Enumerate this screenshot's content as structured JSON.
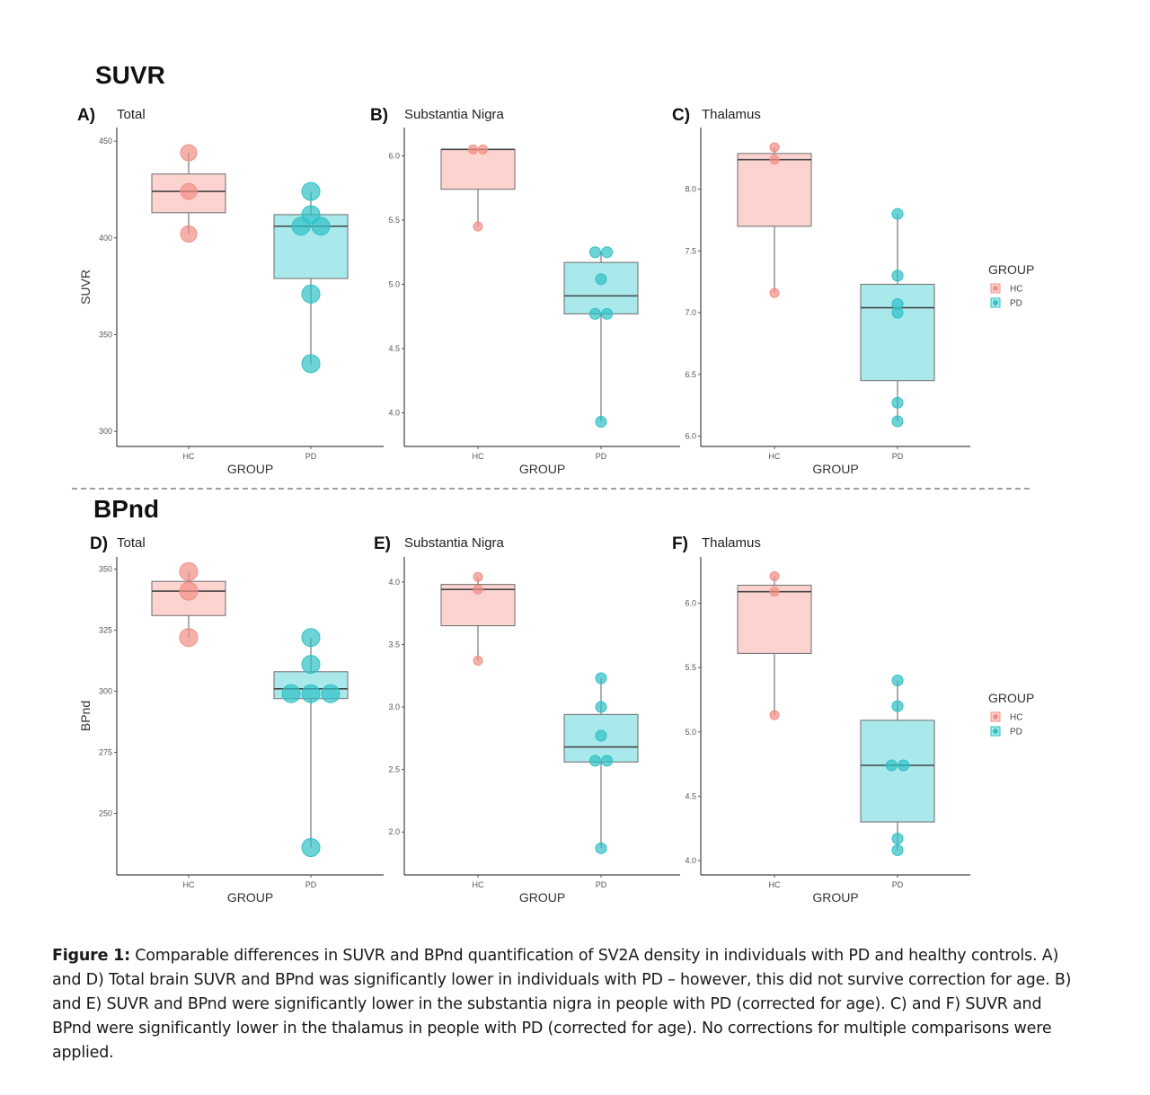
{
  "sections": [
    {
      "title": "SUVR"
    },
    {
      "title": "BPnd"
    }
  ],
  "legend": {
    "title": "GROUP",
    "items": [
      {
        "label": "HC",
        "color": "#f28e86",
        "fill": "#fdd3d0"
      },
      {
        "label": "PD",
        "color": "#2fc1c6",
        "fill": "#a9e9eb"
      }
    ]
  },
  "caption": {
    "label": "Figure 1:",
    "text": " Comparable differences in SUVR and BPnd quantification of SV2A density in individuals with PD and healthy controls. A) and D) Total brain SUVR and BPnd was significantly lower in individuals with PD – however, this did not survive correction for age. B) and E) SUVR and BPnd were significantly lower in the substantia nigra in people with PD (corrected for age). C) and F) SUVR and BPnd were significantly lower in the thalamus in people with PD (corrected for age). No corrections for multiple comparisons were applied."
  },
  "chart_data": [
    {
      "type": "box",
      "panel": "A)",
      "region": "Total",
      "xlabel": "GROUP",
      "ylabel": "SUVR",
      "categories": [
        "HC",
        "PD"
      ],
      "ylim": [
        295,
        457
      ],
      "yticks": [
        300,
        350,
        400,
        450
      ],
      "tick_decimals": 0,
      "boxes": [
        {
          "group": "HC",
          "q1": 413,
          "median": 424,
          "q3": 433,
          "whisker_low": 402,
          "whisker_high": 444
        },
        {
          "group": "PD",
          "q1": 379,
          "median": 406,
          "q3": 412,
          "whisker_low": 335,
          "whisker_high": 424
        }
      ],
      "points": [
        {
          "group": "HC",
          "values": [
            444,
            424,
            402
          ]
        },
        {
          "group": "PD",
          "values": [
            424,
            412,
            406,
            406,
            371,
            335
          ]
        }
      ]
    },
    {
      "type": "box",
      "panel": "B)",
      "region": "Substantia Nigra",
      "xlabel": "GROUP",
      "categories": [
        "HC",
        "PD"
      ],
      "ylim": [
        3.78,
        6.22
      ],
      "yticks": [
        4.0,
        4.5,
        5.0,
        5.5,
        6.0
      ],
      "tick_decimals": 1,
      "boxes": [
        {
          "group": "HC",
          "q1": 5.74,
          "median": 6.05,
          "q3": 6.05,
          "whisker_low": 5.45,
          "whisker_high": 6.05
        },
        {
          "group": "PD",
          "q1": 4.77,
          "median": 4.91,
          "q3": 5.17,
          "whisker_low": 3.93,
          "whisker_high": 5.25
        }
      ],
      "points": [
        {
          "group": "HC",
          "values": [
            6.05,
            6.05,
            5.45
          ]
        },
        {
          "group": "PD",
          "values": [
            5.25,
            5.25,
            5.04,
            4.77,
            4.77,
            3.93
          ]
        }
      ]
    },
    {
      "type": "box",
      "panel": "C)",
      "region": "Thalamus",
      "xlabel": "GROUP",
      "categories": [
        "HC",
        "PD"
      ],
      "ylim": [
        5.96,
        8.5
      ],
      "yticks": [
        6.0,
        6.5,
        7.0,
        7.5,
        8.0
      ],
      "tick_decimals": 1,
      "boxes": [
        {
          "group": "HC",
          "q1": 7.7,
          "median": 8.24,
          "q3": 8.29,
          "whisker_low": 7.16,
          "whisker_high": 8.34
        },
        {
          "group": "PD",
          "q1": 6.45,
          "median": 7.04,
          "q3": 7.23,
          "whisker_low": 6.12,
          "whisker_high": 7.8
        }
      ],
      "points": [
        {
          "group": "HC",
          "values": [
            8.34,
            8.24,
            7.16
          ]
        },
        {
          "group": "PD",
          "values": [
            7.8,
            7.3,
            7.07,
            7.0,
            6.27,
            6.12
          ]
        }
      ]
    },
    {
      "type": "box",
      "panel": "D)",
      "region": "Total",
      "xlabel": "GROUP",
      "ylabel": "BPnd",
      "categories": [
        "HC",
        "PD"
      ],
      "ylim": [
        227,
        355
      ],
      "yticks": [
        250,
        275,
        300,
        325,
        350
      ],
      "tick_decimals": 0,
      "boxes": [
        {
          "group": "HC",
          "q1": 331,
          "median": 341,
          "q3": 345,
          "whisker_low": 322,
          "whisker_high": 349
        },
        {
          "group": "PD",
          "q1": 297,
          "median": 301,
          "q3": 308,
          "whisker_low": 236,
          "whisker_high": 322
        }
      ],
      "points": [
        {
          "group": "HC",
          "values": [
            349,
            341,
            322
          ]
        },
        {
          "group": "PD",
          "values": [
            322,
            311,
            299,
            299,
            299,
            236
          ]
        }
      ]
    },
    {
      "type": "box",
      "panel": "E)",
      "region": "Substantia Nigra",
      "xlabel": "GROUP",
      "categories": [
        "HC",
        "PD"
      ],
      "ylim": [
        1.7,
        4.2
      ],
      "yticks": [
        2.0,
        2.5,
        3.0,
        3.5,
        4.0
      ],
      "tick_decimals": 1,
      "boxes": [
        {
          "group": "HC",
          "q1": 3.65,
          "median": 3.94,
          "q3": 3.98,
          "whisker_low": 3.37,
          "whisker_high": 4.04
        },
        {
          "group": "PD",
          "q1": 2.56,
          "median": 2.68,
          "q3": 2.94,
          "whisker_low": 1.87,
          "whisker_high": 3.23
        }
      ],
      "points": [
        {
          "group": "HC",
          "values": [
            4.04,
            3.94,
            3.37
          ]
        },
        {
          "group": "PD",
          "values": [
            3.23,
            3.0,
            2.77,
            2.57,
            2.57,
            1.87
          ]
        }
      ]
    },
    {
      "type": "box",
      "panel": "F)",
      "region": "Thalamus",
      "xlabel": "GROUP",
      "categories": [
        "HC",
        "PD"
      ],
      "ylim": [
        3.93,
        6.36
      ],
      "yticks": [
        4.0,
        4.5,
        5.0,
        5.5,
        6.0
      ],
      "tick_decimals": 1,
      "boxes": [
        {
          "group": "HC",
          "q1": 5.61,
          "median": 6.09,
          "q3": 6.14,
          "whisker_low": 5.13,
          "whisker_high": 6.21
        },
        {
          "group": "PD",
          "q1": 4.3,
          "median": 4.74,
          "q3": 5.09,
          "whisker_low": 4.08,
          "whisker_high": 5.4
        }
      ],
      "points": [
        {
          "group": "HC",
          "values": [
            6.21,
            6.09,
            5.13
          ]
        },
        {
          "group": "PD",
          "values": [
            5.4,
            5.2,
            4.74,
            4.74,
            4.17,
            4.08
          ]
        }
      ]
    }
  ]
}
